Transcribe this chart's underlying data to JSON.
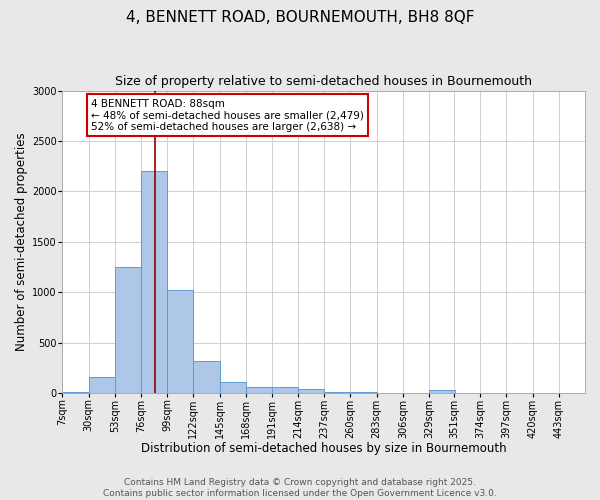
{
  "title": "4, BENNETT ROAD, BOURNEMOUTH, BH8 8QF",
  "subtitle": "Size of property relative to semi-detached houses in Bournemouth",
  "xlabel": "Distribution of semi-detached houses by size in Bournemouth",
  "ylabel": "Number of semi-detached properties",
  "footnote1": "Contains HM Land Registry data © Crown copyright and database right 2025.",
  "footnote2": "Contains public sector information licensed under the Open Government Licence v3.0.",
  "annotation_title": "4 BENNETT ROAD: 88sqm",
  "annotation_line1": "← 48% of semi-detached houses are smaller (2,479)",
  "annotation_line2": "52% of semi-detached houses are larger (2,638) →",
  "property_sqm": 88,
  "bin_edges": [
    7,
    30,
    53,
    76,
    99,
    122,
    145,
    168,
    191,
    214,
    237,
    260,
    283,
    306,
    329,
    351,
    374,
    397,
    420,
    443,
    466
  ],
  "bar_heights": [
    10,
    155,
    1250,
    2200,
    1020,
    315,
    110,
    60,
    55,
    35,
    10,
    5,
    0,
    0,
    30,
    0,
    0,
    0,
    0,
    0
  ],
  "bar_color": "#aec6e8",
  "bar_edge_color": "#5b9bd5",
  "vline_color": "#8b0000",
  "vline_x": 88,
  "ylim": [
    0,
    3000
  ],
  "yticks": [
    0,
    500,
    1000,
    1500,
    2000,
    2500,
    3000
  ],
  "background_color": "#e8e8e8",
  "plot_bg_color": "#ffffff",
  "grid_color": "#c8c8c8",
  "annotation_box_color": "#ffffff",
  "annotation_box_edge": "#cc0000",
  "title_fontsize": 11,
  "subtitle_fontsize": 9,
  "axis_label_fontsize": 8.5,
  "tick_fontsize": 7,
  "annotation_fontsize": 7.5,
  "footnote_fontsize": 6.5
}
